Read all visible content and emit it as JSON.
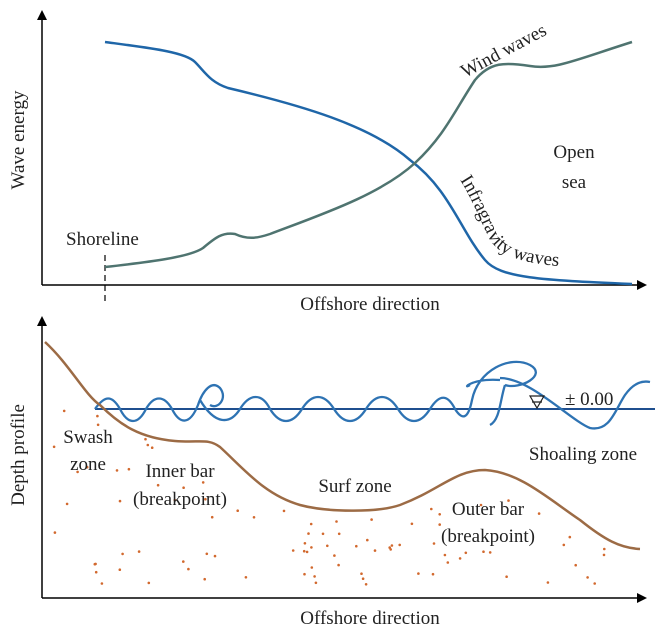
{
  "top_panel": {
    "y_axis_label": "Wave energy",
    "x_axis_label": "Offshore direction",
    "shoreline": "Shoreline",
    "wind_waves": "Wind waves",
    "infragravity_waves": "Infragravity waves",
    "open_sea": [
      "Open",
      "sea"
    ]
  },
  "bottom_panel": {
    "y_axis_label": "Depth profile",
    "x_axis_label": "Offshore direction",
    "swash_zone": [
      "Swash",
      "zone"
    ],
    "inner_bar": [
      "Inner bar",
      "(breakpoint)"
    ],
    "surf_zone": "Surf zone",
    "outer_bar": [
      "Outer bar",
      "(breakpoint)"
    ],
    "shoaling_zone": "Shoaling zone",
    "water_level": "± 0.00"
  }
}
